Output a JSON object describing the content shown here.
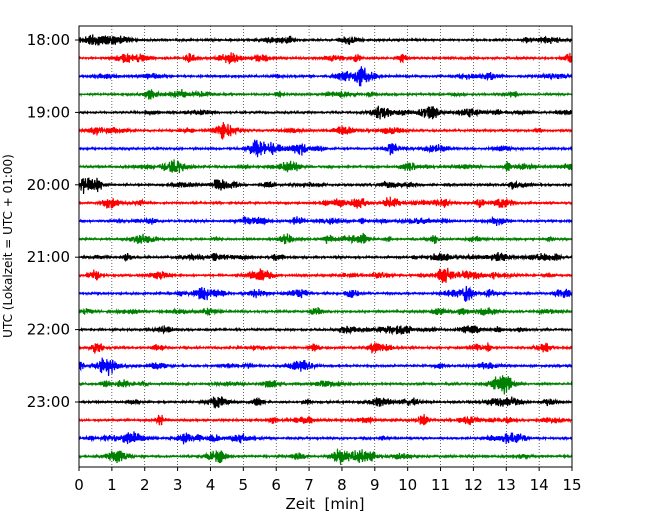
{
  "chart_data": {
    "type": "line",
    "title": "",
    "xlabel": "Zeit  [min]",
    "ylabel": "UTC (Lokalzeit = UTC + 01:00)",
    "xlim": [
      0,
      15
    ],
    "x_ticks": [
      0,
      1,
      2,
      3,
      4,
      5,
      6,
      7,
      8,
      9,
      10,
      11,
      12,
      13,
      14,
      15
    ],
    "x_tick_labels": [
      "0",
      "1",
      "2",
      "3",
      "4",
      "5",
      "6",
      "7",
      "8",
      "9",
      "10",
      "11",
      "12",
      "13",
      "14",
      "15"
    ],
    "y_tick_labels": [
      "18:00",
      "19:00",
      "20:00",
      "21:00",
      "22:00",
      "23:00"
    ],
    "grid": "vertical dotted",
    "legend": "none",
    "trace_interval_minutes": 15,
    "series_colors": [
      "#000000",
      "#ff0000",
      "#0000ff",
      "#008000"
    ],
    "traces": [
      {
        "start": "18:00",
        "color": "#000000"
      },
      {
        "start": "18:15",
        "color": "#ff0000"
      },
      {
        "start": "18:30",
        "color": "#0000ff"
      },
      {
        "start": "18:45",
        "color": "#008000"
      },
      {
        "start": "19:00",
        "color": "#000000"
      },
      {
        "start": "19:15",
        "color": "#ff0000"
      },
      {
        "start": "19:30",
        "color": "#0000ff"
      },
      {
        "start": "19:45",
        "color": "#008000"
      },
      {
        "start": "20:00",
        "color": "#000000"
      },
      {
        "start": "20:15",
        "color": "#ff0000"
      },
      {
        "start": "20:30",
        "color": "#0000ff"
      },
      {
        "start": "20:45",
        "color": "#008000"
      },
      {
        "start": "21:00",
        "color": "#000000"
      },
      {
        "start": "21:15",
        "color": "#ff0000"
      },
      {
        "start": "21:30",
        "color": "#0000ff"
      },
      {
        "start": "21:45",
        "color": "#008000"
      },
      {
        "start": "22:00",
        "color": "#000000"
      },
      {
        "start": "22:15",
        "color": "#ff0000"
      },
      {
        "start": "22:30",
        "color": "#0000ff"
      },
      {
        "start": "22:45",
        "color": "#008000"
      },
      {
        "start": "23:00",
        "color": "#000000"
      },
      {
        "start": "23:15",
        "color": "#ff0000"
      },
      {
        "start": "23:30",
        "color": "#0000ff"
      },
      {
        "start": "23:45",
        "color": "#008000"
      }
    ]
  }
}
